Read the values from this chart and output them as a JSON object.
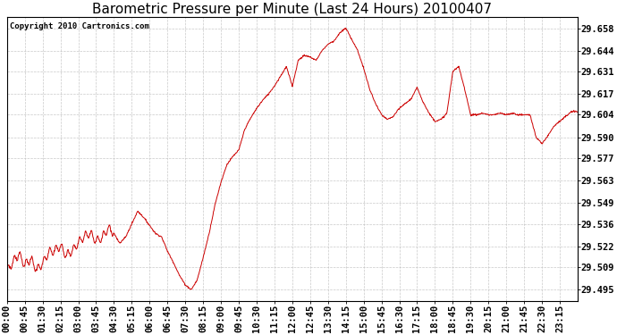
{
  "title": "Barometric Pressure per Minute (Last 24 Hours) 20100407",
  "copyright_text": "Copyright 2010 Cartronics.com",
  "line_color": "#cc0000",
  "background_color": "#ffffff",
  "grid_color": "#bbbbbb",
  "yticks": [
    29.495,
    29.509,
    29.522,
    29.536,
    29.549,
    29.563,
    29.577,
    29.59,
    29.604,
    29.617,
    29.631,
    29.644,
    29.658
  ],
  "ylim": [
    29.488,
    29.665
  ],
  "xtick_labels": [
    "00:00",
    "00:45",
    "01:30",
    "02:15",
    "03:00",
    "03:45",
    "04:30",
    "05:15",
    "06:00",
    "06:45",
    "07:30",
    "08:15",
    "09:00",
    "09:45",
    "10:30",
    "11:15",
    "12:00",
    "12:45",
    "13:30",
    "14:15",
    "15:00",
    "15:45",
    "16:30",
    "17:15",
    "18:00",
    "18:45",
    "19:30",
    "20:15",
    "21:00",
    "21:45",
    "22:30",
    "23:15"
  ],
  "title_fontsize": 11,
  "tick_fontsize": 7.5,
  "copyright_fontsize": 6.5,
  "keypoints_x": [
    0,
    15,
    30,
    45,
    60,
    75,
    90,
    105,
    120,
    135,
    150,
    165,
    180,
    195,
    210,
    225,
    240,
    255,
    270,
    285,
    300,
    315,
    330,
    345,
    360,
    375,
    390,
    405,
    420,
    435,
    450,
    465,
    480,
    495,
    510,
    525,
    540,
    555,
    570,
    585,
    600,
    615,
    630,
    645,
    660,
    675,
    690,
    705,
    720,
    735,
    750,
    765,
    780,
    795,
    810,
    825,
    840,
    855,
    870,
    885,
    900,
    915,
    930,
    945,
    960,
    975,
    990,
    1005,
    1020,
    1035,
    1050,
    1065,
    1080,
    1095,
    1110,
    1125,
    1140,
    1155,
    1170,
    1185,
    1200,
    1215,
    1230,
    1245,
    1260,
    1275,
    1290,
    1305,
    1320,
    1335,
    1350,
    1365,
    1380,
    1395,
    1410,
    1425,
    1439
  ],
  "keypoints_y": [
    29.506,
    29.512,
    29.517,
    29.51,
    29.514,
    29.507,
    29.511,
    29.518,
    29.519,
    29.522,
    29.516,
    29.519,
    29.524,
    29.528,
    29.53,
    29.525,
    29.527,
    29.533,
    29.53,
    29.524,
    29.528,
    29.536,
    29.544,
    29.54,
    29.535,
    29.53,
    29.528,
    29.519,
    29.512,
    29.504,
    29.498,
    29.495,
    29.501,
    29.515,
    29.53,
    29.548,
    29.562,
    29.573,
    29.578,
    29.582,
    29.595,
    29.602,
    29.608,
    29.613,
    29.617,
    29.622,
    29.628,
    29.634,
    29.622,
    29.638,
    29.641,
    29.64,
    29.638,
    29.644,
    29.648,
    29.65,
    29.655,
    29.658,
    29.651,
    29.644,
    29.633,
    29.62,
    29.611,
    29.604,
    29.601,
    29.603,
    29.608,
    29.611,
    29.614,
    29.621,
    29.612,
    29.605,
    29.6,
    29.601,
    29.605,
    29.631,
    29.634,
    29.62,
    29.604,
    29.604,
    29.605,
    29.604,
    29.604,
    29.605,
    29.604,
    29.605,
    29.604,
    29.604,
    29.604,
    29.59,
    29.586,
    29.591,
    29.597,
    29.6,
    29.603,
    29.606,
    29.606
  ]
}
